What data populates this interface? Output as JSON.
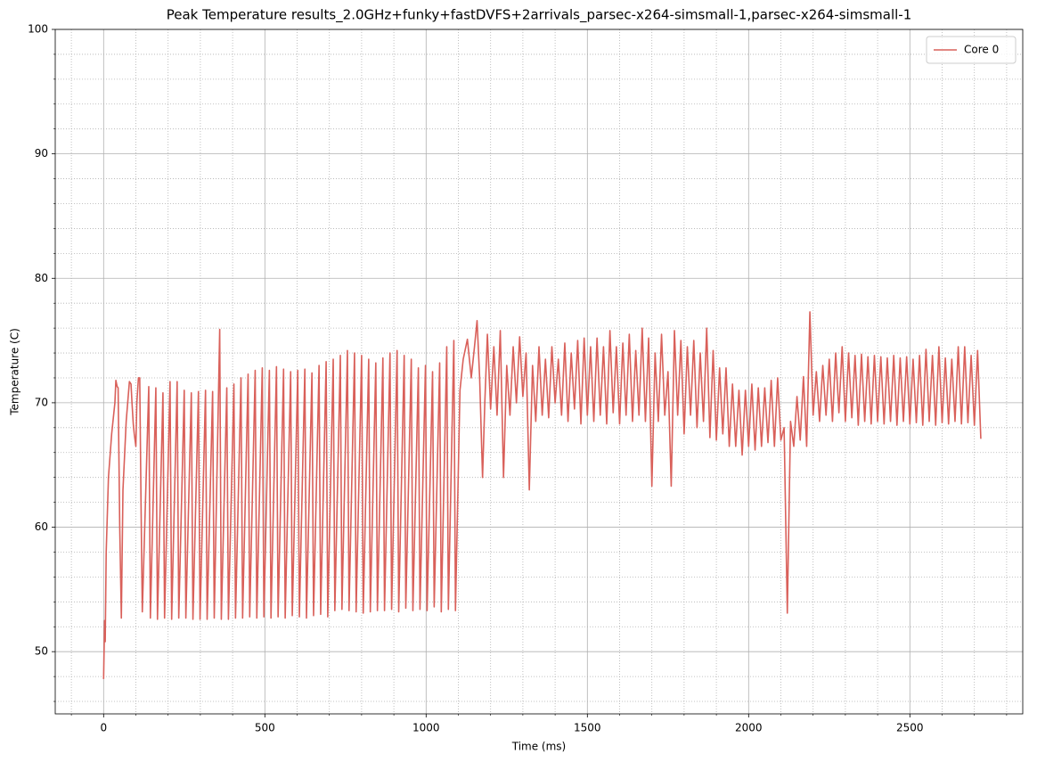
{
  "chart_data": {
    "type": "line",
    "title": "Peak Temperature results_2.0GHz+funky+fastDVFS+2arrivals_parsec-x264-simsmall-1,parsec-x264-simsmall-1",
    "x_label": "Time (ms)",
    "y_label": "Temperature (C)",
    "xlim": [
      -150,
      2850
    ],
    "ylim": [
      45,
      100
    ],
    "xticks": [
      0,
      500,
      1000,
      1500,
      2000,
      2500
    ],
    "yticks": [
      50,
      60,
      70,
      80,
      90,
      100
    ],
    "xminorticks": [
      -100,
      100,
      200,
      300,
      400,
      600,
      700,
      800,
      900,
      1100,
      1200,
      1300,
      1400,
      1600,
      1700,
      1800,
      1900,
      2100,
      2200,
      2300,
      2400,
      2600,
      2700,
      2800
    ],
    "yminorticks": [
      46,
      48,
      52,
      54,
      56,
      58,
      62,
      64,
      66,
      68,
      72,
      74,
      76,
      78,
      82,
      84,
      86,
      88,
      92,
      94,
      96,
      98
    ],
    "grid": true,
    "minor_grid": true,
    "legend": "upper right",
    "x": [
      0,
      3,
      5,
      8,
      15,
      25,
      35,
      38,
      42,
      45,
      50,
      55,
      60,
      70,
      80,
      85,
      88,
      92,
      95,
      100,
      103,
      108,
      112,
      116,
      120,
      140,
      145,
      162,
      167,
      184,
      189,
      206,
      211,
      228,
      233,
      250,
      255,
      272,
      277,
      294,
      299,
      316,
      321,
      338,
      343,
      360,
      365,
      382,
      387,
      404,
      409,
      426,
      431,
      448,
      453,
      470,
      475,
      492,
      497,
      514,
      519,
      536,
      541,
      558,
      563,
      580,
      585,
      602,
      607,
      624,
      629,
      646,
      651,
      668,
      673,
      690,
      695,
      712,
      717,
      734,
      739,
      756,
      761,
      778,
      783,
      800,
      805,
      822,
      827,
      844,
      849,
      866,
      871,
      888,
      893,
      910,
      915,
      932,
      937,
      954,
      959,
      976,
      981,
      998,
      1003,
      1020,
      1025,
      1042,
      1047,
      1064,
      1069,
      1086,
      1091,
      1105,
      1115,
      1128,
      1140,
      1150,
      1158,
      1166,
      1175,
      1182,
      1190,
      1200,
      1210,
      1220,
      1230,
      1240,
      1250,
      1260,
      1270,
      1280,
      1290,
      1300,
      1310,
      1320,
      1330,
      1340,
      1350,
      1360,
      1370,
      1380,
      1390,
      1400,
      1410,
      1420,
      1430,
      1440,
      1450,
      1460,
      1470,
      1480,
      1490,
      1500,
      1510,
      1520,
      1530,
      1540,
      1550,
      1560,
      1570,
      1580,
      1590,
      1600,
      1610,
      1620,
      1630,
      1640,
      1650,
      1660,
      1670,
      1680,
      1690,
      1700,
      1710,
      1720,
      1730,
      1740,
      1750,
      1760,
      1770,
      1780,
      1790,
      1800,
      1810,
      1820,
      1830,
      1840,
      1850,
      1860,
      1870,
      1880,
      1890,
      1900,
      1910,
      1920,
      1930,
      1940,
      1950,
      1960,
      1970,
      1980,
      1990,
      2000,
      2010,
      2020,
      2030,
      2040,
      2050,
      2060,
      2070,
      2080,
      2090,
      2100,
      2110,
      2120,
      2130,
      2140,
      2150,
      2160,
      2170,
      2180,
      2190,
      2200,
      2210,
      2220,
      2230,
      2240,
      2250,
      2260,
      2270,
      2280,
      2290,
      2300,
      2310,
      2320,
      2330,
      2340,
      2350,
      2360,
      2370,
      2380,
      2390,
      2400,
      2410,
      2420,
      2430,
      2440,
      2450,
      2460,
      2470,
      2480,
      2490,
      2500,
      2510,
      2520,
      2530,
      2540,
      2550,
      2560,
      2570,
      2580,
      2590,
      2600,
      2610,
      2620,
      2630,
      2640,
      2650,
      2660,
      2670,
      2680,
      2690,
      2700,
      2710,
      2720
    ],
    "series": [
      {
        "name": "Core 0",
        "color": "#d9605a",
        "values": [
          47.8,
          52.5,
          50.8,
          58,
          64,
          67.5,
          70,
          71.8,
          71.3,
          71.2,
          60,
          52.7,
          63,
          68.5,
          71.7,
          71.5,
          70,
          68.3,
          67.5,
          66.5,
          70,
          72,
          72,
          62,
          53.2,
          71.3,
          52.7,
          71.2,
          52.6,
          70.8,
          52.7,
          71.7,
          52.6,
          71.7,
          52.7,
          71.0,
          52.7,
          70.8,
          52.6,
          70.9,
          52.6,
          71.0,
          52.6,
          70.9,
          52.7,
          75.9,
          52.6,
          71.2,
          52.6,
          71.5,
          52.7,
          72.0,
          52.7,
          72.3,
          52.8,
          72.6,
          52.7,
          72.8,
          52.8,
          72.6,
          52.7,
          72.9,
          52.8,
          72.7,
          52.7,
          72.5,
          52.9,
          72.6,
          52.8,
          72.7,
          52.7,
          72.4,
          52.9,
          73.0,
          53.0,
          73.3,
          52.8,
          73.5,
          53.3,
          73.8,
          53.4,
          74.2,
          53.3,
          74.0,
          53.2,
          73.8,
          53.1,
          73.5,
          53.2,
          73.2,
          53.3,
          73.6,
          53.3,
          74.0,
          53.4,
          74.2,
          53.2,
          73.8,
          53.5,
          73.5,
          53.3,
          72.8,
          53.4,
          73.0,
          53.3,
          72.5,
          53.6,
          73.2,
          53.2,
          74.5,
          53.4,
          75.0,
          53.3,
          71,
          73.5,
          75.1,
          72,
          74.5,
          76.6,
          72,
          64,
          70,
          75.5,
          69.5,
          74.5,
          69,
          75.8,
          64,
          73,
          69,
          74.5,
          70,
          75.3,
          70.5,
          74,
          63,
          73,
          68.5,
          74.5,
          69,
          73.5,
          68.8,
          74.5,
          70,
          73.5,
          69,
          74.8,
          68.5,
          74,
          69.5,
          75,
          68.3,
          75.2,
          69,
          74.5,
          68.5,
          75.2,
          69,
          74.5,
          68.3,
          75.8,
          69.2,
          74.5,
          68.3,
          74.8,
          69,
          75.5,
          68.5,
          74.2,
          69,
          76,
          68.5,
          75.2,
          63.3,
          74,
          68.5,
          75.5,
          69,
          72.5,
          63.3,
          75.8,
          69,
          75,
          67.5,
          74.5,
          69,
          75,
          68,
          74,
          68.5,
          76,
          67.2,
          74.2,
          67,
          72.8,
          67.5,
          72.8,
          66.5,
          71.5,
          66.5,
          71,
          65.8,
          71,
          66.5,
          71.5,
          66.2,
          71.2,
          66.5,
          71.2,
          66.8,
          71.8,
          66.5,
          72,
          67,
          68,
          53.1,
          68.5,
          66.5,
          70.5,
          67,
          72.1,
          66.5,
          77.3,
          69,
          72.5,
          68.5,
          73,
          69,
          73.5,
          68.5,
          74,
          69.2,
          74.5,
          68.5,
          74,
          68.8,
          73.8,
          68.2,
          73.9,
          68.5,
          73.7,
          68.3,
          73.8,
          68.5,
          73.7,
          68.3,
          73.6,
          68.5,
          73.8,
          68.2,
          73.6,
          68.5,
          73.7,
          68.3,
          73.5,
          68.4,
          73.8,
          68.2,
          74.3,
          68.5,
          73.8,
          68.2,
          74.5,
          68.4,
          73.6,
          68.3,
          73.5,
          68.5,
          74.5,
          68.3,
          74.5,
          68.4,
          73.8,
          68.2,
          74.2,
          67.1
        ]
      }
    ]
  }
}
